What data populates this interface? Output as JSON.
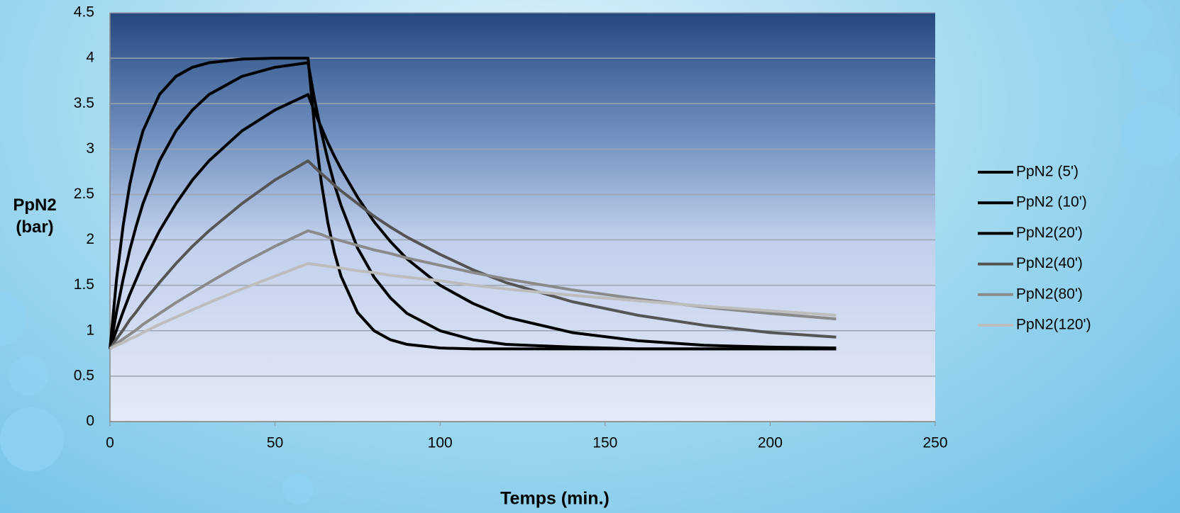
{
  "chart_data": {
    "type": "line",
    "x_label": "Temps (min.)",
    "y_label": "PpN2 (bar)",
    "x": [
      0,
      2,
      4,
      6,
      8,
      10,
      15,
      20,
      25,
      30,
      40,
      50,
      60,
      62,
      64,
      66,
      68,
      70,
      75,
      80,
      85,
      90,
      100,
      110,
      120,
      140,
      160,
      180,
      200,
      220
    ],
    "series": [
      {
        "name": "PpN2 (5')",
        "color": "#000000",
        "values": [
          0.8,
          1.57,
          2.16,
          2.61,
          2.94,
          3.2,
          3.6,
          3.8,
          3.9,
          3.95,
          3.99,
          4.0,
          4.0,
          3.23,
          2.64,
          2.19,
          1.86,
          1.6,
          1.2,
          1.0,
          0.9,
          0.85,
          0.81,
          0.8,
          0.8,
          0.8,
          0.8,
          0.8,
          0.8,
          0.8
        ]
      },
      {
        "name": "PpN2 (10')",
        "color": "#000000",
        "values": [
          0.8,
          1.21,
          1.57,
          1.89,
          2.16,
          2.4,
          2.87,
          3.2,
          3.43,
          3.6,
          3.8,
          3.9,
          3.95,
          3.54,
          3.19,
          2.88,
          2.61,
          2.38,
          1.91,
          1.59,
          1.36,
          1.19,
          1.0,
          0.9,
          0.85,
          0.82,
          0.8,
          0.8,
          0.8,
          0.8
        ]
      },
      {
        "name": "PpN2(20')",
        "color": "#000000",
        "values": [
          0.8,
          1.01,
          1.21,
          1.4,
          1.57,
          1.74,
          2.1,
          2.4,
          2.66,
          2.87,
          3.2,
          3.43,
          3.6,
          3.41,
          3.24,
          3.07,
          2.92,
          2.78,
          2.47,
          2.2,
          1.98,
          1.79,
          1.5,
          1.3,
          1.15,
          0.98,
          0.89,
          0.84,
          0.82,
          0.81
        ]
      },
      {
        "name": "PpN2(40')",
        "color": "#555555",
        "values": [
          0.8,
          0.91,
          1.01,
          1.12,
          1.21,
          1.31,
          1.53,
          1.74,
          1.93,
          2.1,
          2.4,
          2.66,
          2.87,
          2.8,
          2.73,
          2.67,
          2.6,
          2.54,
          2.4,
          2.26,
          2.14,
          2.03,
          1.84,
          1.67,
          1.53,
          1.32,
          1.17,
          1.06,
          0.98,
          0.93
        ]
      },
      {
        "name": "PpN2(80')",
        "color": "#8a8a8a",
        "values": [
          0.8,
          0.86,
          0.91,
          0.96,
          1.01,
          1.07,
          1.19,
          1.31,
          1.42,
          1.53,
          1.74,
          1.93,
          2.1,
          2.08,
          2.06,
          2.03,
          2.01,
          1.99,
          1.94,
          1.89,
          1.85,
          1.8,
          1.72,
          1.64,
          1.57,
          1.45,
          1.35,
          1.26,
          1.19,
          1.13
        ]
      },
      {
        "name": "PpN2(120')",
        "color": "#bdbdbd",
        "values": [
          0.8,
          0.84,
          0.87,
          0.91,
          0.94,
          0.98,
          1.07,
          1.15,
          1.23,
          1.31,
          1.46,
          1.6,
          1.74,
          1.73,
          1.72,
          1.71,
          1.7,
          1.69,
          1.66,
          1.64,
          1.61,
          1.59,
          1.55,
          1.5,
          1.46,
          1.39,
          1.33,
          1.27,
          1.22,
          1.17
        ]
      }
    ],
    "xlim": [
      0,
      250
    ],
    "xticks": [
      0,
      50,
      100,
      150,
      200,
      250
    ],
    "ylim": [
      0,
      4.5
    ],
    "yticks": [
      0,
      0.5,
      1,
      1.5,
      2,
      2.5,
      3,
      3.5,
      4,
      4.5
    ],
    "grid": true,
    "legend": "right"
  }
}
